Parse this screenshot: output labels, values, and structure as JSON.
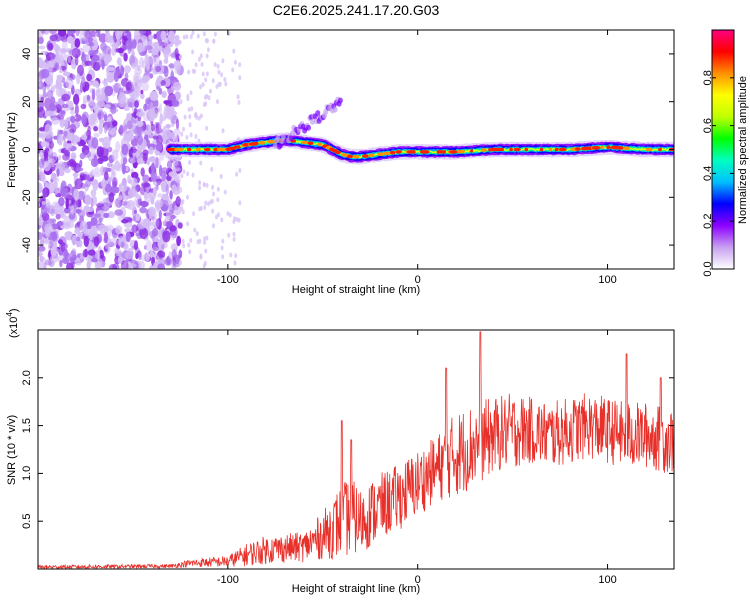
{
  "title": "C2E6.2025.241.17.20.G03",
  "chart_data": [
    {
      "id": "spectrogram",
      "type": "heatmap",
      "xlabel": "Height of straight line (km)",
      "ylabel": "Frequency (Hz)",
      "xlim": [
        -200,
        135
      ],
      "ylim": [
        -50,
        50
      ],
      "xticks": [
        -100,
        0,
        100
      ],
      "yticks": [
        -40,
        -20,
        0,
        20,
        40
      ],
      "xtick_labels": [
        "-100",
        "0",
        "100"
      ],
      "ytick_labels": [
        "-40",
        "-20",
        "0",
        "20",
        "40"
      ],
      "colorbar": {
        "label": "Normalized spectral amplitude",
        "range": [
          0.0,
          1.0
        ],
        "ticks": [
          0.0,
          0.2,
          0.4,
          0.6,
          0.8
        ],
        "tick_labels": [
          "0.0",
          "0.2",
          "0.4",
          "0.6",
          "0.8"
        ],
        "colormap": [
          "#ffffff",
          "#c8a0f0",
          "#8c00ff",
          "#0000ff",
          "#00bfff",
          "#00ffc0",
          "#00ff00",
          "#c0ff00",
          "#ffff00",
          "#ff9000",
          "#ff0000",
          "#ff0080"
        ]
      },
      "signal_track": {
        "description_points_x": [
          -130,
          -120,
          -100,
          -90,
          -80,
          -70,
          -60,
          -50,
          -45,
          -40,
          -35,
          -30,
          -20,
          -10,
          0,
          20,
          40,
          60,
          80,
          100,
          120,
          135
        ],
        "description_points_freq": [
          0,
          0,
          0,
          2,
          3,
          4,
          3,
          2,
          0,
          -2,
          -3,
          -3,
          -2,
          -1,
          -1,
          -1,
          0,
          0,
          0,
          1,
          0,
          0
        ]
      },
      "noise_region_x": [
        -200,
        -125
      ]
    },
    {
      "id": "snr",
      "type": "line",
      "xlabel": "Height of straight line (km)",
      "ylabel": "SNR (10 * v/v)",
      "y_multiplier_label": "(x10",
      "y_multiplier_exp": "4",
      "y_multiplier_close": ")",
      "xlim": [
        -200,
        135
      ],
      "ylim": [
        0,
        25000
      ],
      "xticks": [
        -100,
        0,
        100
      ],
      "yticks": [
        5000,
        10000,
        15000,
        20000
      ],
      "xtick_labels": [
        "-100",
        "0",
        "100"
      ],
      "ytick_labels": [
        "0.5",
        "1.0",
        "1.5",
        "2.0"
      ],
      "color": "#e8302a",
      "envelope_x": [
        -200,
        -130,
        -120,
        -100,
        -90,
        -80,
        -70,
        -60,
        -50,
        -40,
        -35,
        -30,
        -20,
        -10,
        0,
        10,
        20,
        30,
        40,
        50,
        60,
        70,
        80,
        90,
        100,
        110,
        120,
        130,
        135
      ],
      "envelope_mean": [
        200,
        300,
        600,
        800,
        1500,
        2000,
        2200,
        2300,
        3500,
        5000,
        5500,
        5000,
        6500,
        7500,
        9000,
        10500,
        12000,
        13000,
        14000,
        14500,
        14500,
        14000,
        14500,
        15000,
        14500,
        14000,
        14000,
        13500,
        13500
      ],
      "envelope_spread": [
        200,
        200,
        400,
        600,
        1200,
        1500,
        1500,
        1600,
        2500,
        4000,
        4000,
        3500,
        3500,
        3500,
        3500,
        3500,
        4500,
        4500,
        4000,
        4000,
        3500,
        3500,
        3500,
        3500,
        3500,
        3500,
        3500,
        3500,
        3500
      ],
      "spikes": [
        {
          "x": -40,
          "y": 15500
        },
        {
          "x": -35,
          "y": 13500
        },
        {
          "x": 15,
          "y": 21000
        },
        {
          "x": 33,
          "y": 24800
        },
        {
          "x": 110,
          "y": 22500
        },
        {
          "x": 128,
          "y": 20000
        }
      ]
    }
  ]
}
